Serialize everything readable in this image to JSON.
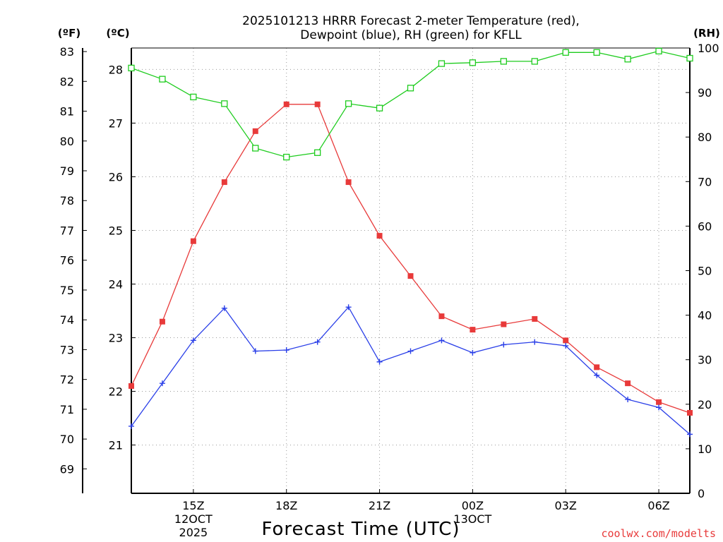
{
  "chart_data": {
    "type": "line",
    "title": [
      "2025101213 HRRR Forecast 2-meter Temperature (red),",
      "Dewpoint (blue), RH (green) for KFLL"
    ],
    "xlabel": "Forecast Time (UTC)",
    "axes": {
      "left_f": {
        "unit_label": "(ºF)",
        "ticks": [
          69,
          70,
          71,
          72,
          73,
          74,
          75,
          76,
          77,
          78,
          79,
          80,
          81,
          82,
          83
        ]
      },
      "left_c": {
        "unit_label": "(ºC)",
        "ticks": [
          21,
          22,
          23,
          24,
          25,
          26,
          27,
          28
        ],
        "ylim": [
          20.1,
          28.4
        ]
      },
      "right_rh": {
        "unit_label": "(RH)",
        "ticks": [
          0,
          10,
          20,
          30,
          40,
          50,
          60,
          70,
          80,
          90,
          100
        ],
        "ylim": [
          0,
          100
        ]
      }
    },
    "x_hours": [
      13,
      14,
      15,
      16,
      17,
      18,
      19,
      20,
      21,
      22,
      23,
      24,
      25,
      26,
      27,
      28,
      29,
      30,
      31
    ],
    "x_range": [
      13,
      31
    ],
    "x_ticks": [
      {
        "hour": 15,
        "lines": [
          "15Z",
          "12OCT",
          "2025"
        ]
      },
      {
        "hour": 18,
        "lines": [
          "18Z"
        ]
      },
      {
        "hour": 21,
        "lines": [
          "21Z"
        ]
      },
      {
        "hour": 24,
        "lines": [
          "00Z",
          "13OCT"
        ]
      },
      {
        "hour": 27,
        "lines": [
          "03Z"
        ]
      },
      {
        "hour": 30,
        "lines": [
          "06Z"
        ]
      }
    ],
    "series": [
      {
        "name": "Temperature",
        "color": "#e83a3a",
        "marker": "filled-square",
        "axis": "left_c",
        "values": [
          22.1,
          23.3,
          24.8,
          25.9,
          26.85,
          27.35,
          27.35,
          25.9,
          24.9,
          24.15,
          23.4,
          23.15,
          23.25,
          23.35,
          22.95,
          22.45,
          22.15,
          21.8,
          21.6
        ]
      },
      {
        "name": "Dewpoint",
        "color": "#2a3fe8",
        "marker": "plus",
        "axis": "left_c",
        "values": [
          21.35,
          22.15,
          22.95,
          23.55,
          22.75,
          22.77,
          22.92,
          23.57,
          22.55,
          22.75,
          22.95,
          22.72,
          22.87,
          22.92,
          22.85,
          22.3,
          21.85,
          21.7,
          21.2
        ]
      },
      {
        "name": "RH",
        "color": "#1ecc1e",
        "marker": "open-square",
        "axis": "right_rh",
        "values": [
          95.5,
          93.0,
          89.0,
          87.5,
          77.5,
          75.5,
          76.5,
          87.5,
          86.5,
          91.0,
          96.5,
          96.7,
          97.0,
          97.0,
          99.0,
          99.0,
          97.5,
          99.3,
          97.7
        ]
      }
    ]
  },
  "credit": "coolwx.com/modelts"
}
